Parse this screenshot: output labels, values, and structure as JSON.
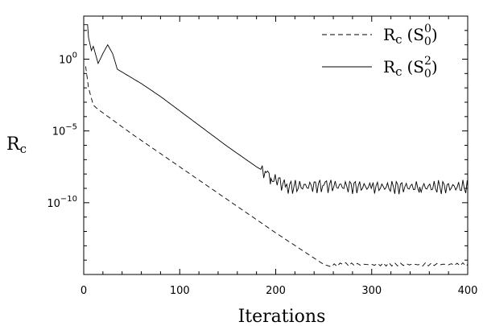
{
  "chart_data": {
    "type": "line",
    "xlabel": "Iterations",
    "ylabel": "R",
    "ylabel_sub": "c",
    "xlim": [
      0,
      400
    ],
    "ylim_log10": [
      -15,
      3
    ],
    "yscale": "log",
    "grid": false,
    "legend_position": "top-right",
    "x_ticks": [
      {
        "value": 0,
        "label": "0"
      },
      {
        "value": 100,
        "label": "100"
      },
      {
        "value": 200,
        "label": "200"
      },
      {
        "value": 300,
        "label": "300"
      },
      {
        "value": 400,
        "label": "400"
      }
    ],
    "y_ticks": [
      {
        "log10": 0,
        "base": "10",
        "exp": "0"
      },
      {
        "log10": -5,
        "base": "10",
        "exp": "−5"
      },
      {
        "log10": -10,
        "base": "10",
        "exp": "−10"
      }
    ],
    "series": [
      {
        "name": "R",
        "name_sub": "c",
        "name_paren": "(S",
        "name_sup": "0",
        "name_sub2": "0",
        "name_close": ")",
        "line_style": "dashed",
        "x": [
          2,
          5,
          10,
          15,
          50,
          100,
          150,
          200,
          250,
          255,
          270,
          300,
          350,
          400
        ],
        "log10_y": [
          -0.5,
          -2.0,
          -3.2,
          -3.5,
          -5.2,
          -7.5,
          -9.8,
          -12.1,
          -14.3,
          -14.4,
          -14.3,
          -14.3,
          -14.3,
          -14.3
        ]
      },
      {
        "name": "R",
        "name_sub": "c",
        "name_paren": "(S",
        "name_sup": "2",
        "name_sub2": "0",
        "name_close": ")",
        "line_style": "solid",
        "x": [
          0,
          4,
          5,
          8,
          10,
          15,
          20,
          25,
          30,
          35,
          40,
          60,
          80,
          100,
          120,
          150,
          180,
          190,
          195,
          200,
          210,
          250,
          300,
          350,
          400
        ],
        "log10_y": [
          2.4,
          2.4,
          1.5,
          0.6,
          0.9,
          -0.3,
          0.4,
          1.0,
          0.4,
          -0.7,
          -0.9,
          -1.7,
          -2.6,
          -3.6,
          -4.6,
          -6.1,
          -7.5,
          -7.9,
          -8.3,
          -8.3,
          -8.9,
          -8.8,
          -8.9,
          -8.9,
          -8.9
        ]
      }
    ]
  }
}
